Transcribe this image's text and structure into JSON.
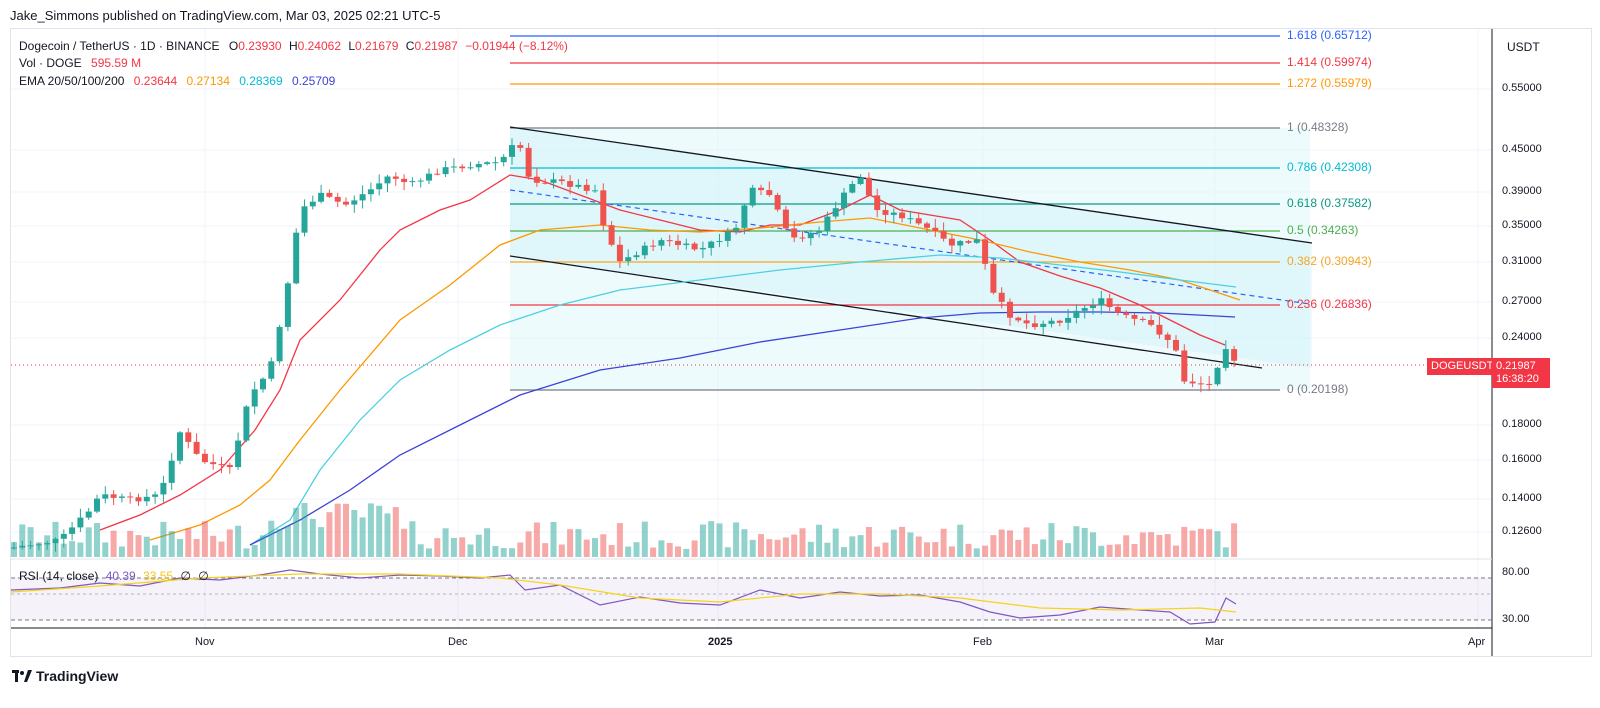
{
  "attribution": "Jake_Simmons published on TradingView.com, Mar 03, 2025 02:21 UTC-5",
  "legend": {
    "symbol": "Dogecoin / TetherUS · 1D · BINANCE",
    "o_label": "O",
    "o": "0.23930",
    "h_label": "H",
    "h": "0.24062",
    "l_label": "L",
    "l": "0.21679",
    "c_label": "C",
    "c": "0.21987",
    "change": "−0.01944 (−8.12%)",
    "vol_label": "Vol · DOGE",
    "vol": "595.59 M",
    "ema_label": "EMA 20/50/100/200",
    "ema20": "0.23644",
    "ema50": "0.27134",
    "ema100": "0.28369",
    "ema200": "0.25709"
  },
  "rsi": {
    "label": "RSI (14, close)",
    "value": "40.39",
    "ma": "33.55",
    "null1": "∅",
    "null2": "∅",
    "upper": "80.00",
    "lower": "30.00"
  },
  "currency": "USDT",
  "price_axis": [
    "0.55000",
    "0.45000",
    "0.39000",
    "0.35000",
    "0.31000",
    "0.27000",
    "0.24000",
    "0.18000",
    "0.16000",
    "0.14000",
    "0.12600"
  ],
  "time_axis": [
    "Nov",
    "Dec",
    "2025",
    "Feb",
    "Mar",
    "Apr"
  ],
  "fib_levels": [
    {
      "label": "1.618 (0.65712)",
      "color": "#2962ff"
    },
    {
      "label": "1.414 (0.59974)",
      "color": "#f23645"
    },
    {
      "label": "1.272 (0.55979)",
      "color": "#ff9800"
    },
    {
      "label": "1 (0.48328)",
      "color": "#787b86"
    },
    {
      "label": "0.786 (0.42308)",
      "color": "#00bcd4"
    },
    {
      "label": "0.618 (0.37582)",
      "color": "#089981"
    },
    {
      "label": "0.5 (0.34263)",
      "color": "#4caf50"
    },
    {
      "label": "0.382 (0.30943)",
      "color": "#f5a623"
    },
    {
      "label": "0.236 (0.26836)",
      "color": "#f23645"
    },
    {
      "label": "0 (0.20198)",
      "color": "#787b86"
    }
  ],
  "last_price": {
    "ticker": "DOGEUSDT",
    "price": "0.21987",
    "countdown": "16:38:20"
  },
  "brand": "TradingView",
  "colors": {
    "up": "#26a69a",
    "down": "#ef5350",
    "ema20": "#f23645",
    "ema50": "#ff9800",
    "ema100": "#4dd0e1",
    "ema200": "#3d42d9",
    "rsi": "#7e57c2"
  }
}
